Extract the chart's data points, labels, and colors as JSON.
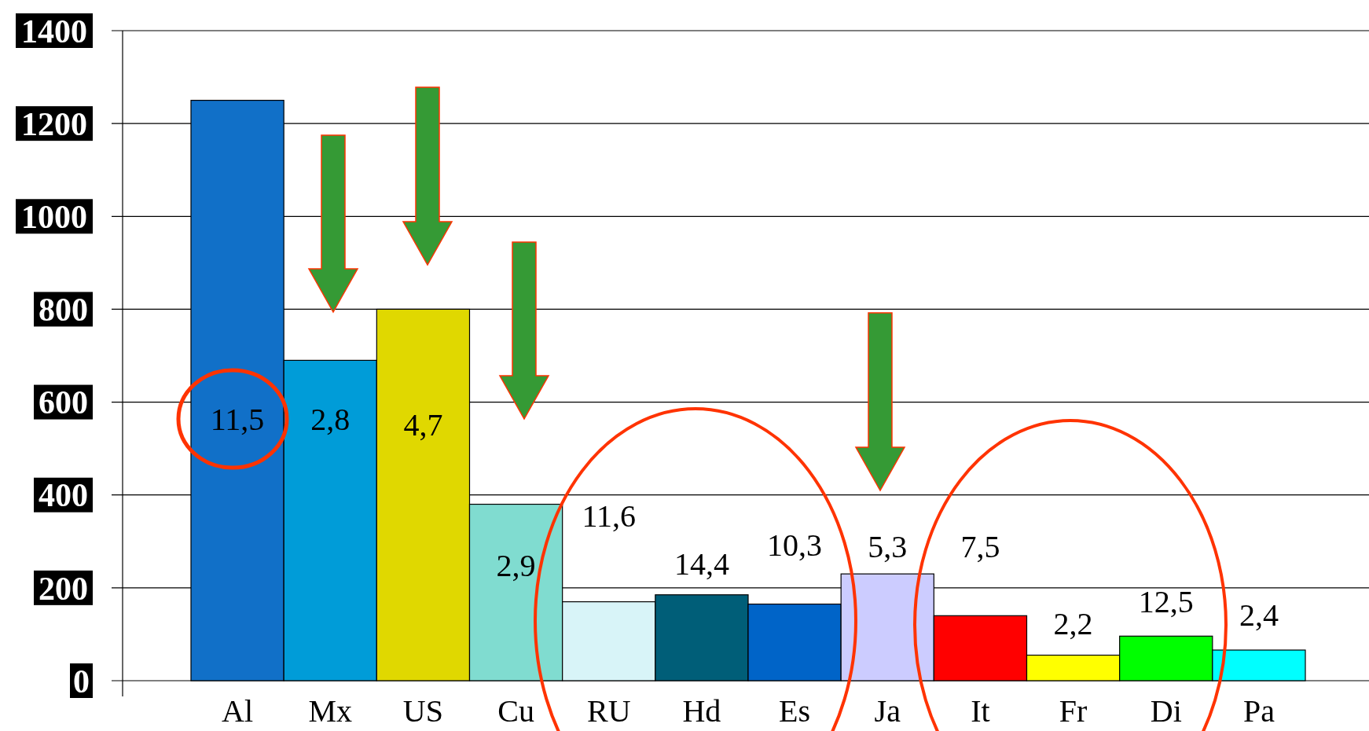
{
  "chart_data": {
    "type": "bar",
    "categories": [
      "Al",
      "Mx",
      "US",
      "Cu",
      "RU",
      "Hd",
      "Es",
      "Ja",
      "It",
      "Fr",
      "Di",
      "Pa"
    ],
    "values": [
      1250,
      690,
      800,
      380,
      170,
      185,
      165,
      230,
      140,
      55,
      96,
      66
    ],
    "colors": [
      "#1170c8",
      "#009cd8",
      "#e0d800",
      "#80dcd0",
      "#d8f4f8",
      "#005e78",
      "#0064c8",
      "#ccccff",
      "#ff0000",
      "#ffff00",
      "#00ff00",
      "#00ffff"
    ],
    "ylim": [
      0,
      1400
    ],
    "yticks": [
      0,
      200,
      400,
      600,
      800,
      1000,
      1200,
      1400
    ],
    "grid": "y",
    "annotations": [
      "11,5",
      "2,8",
      "4,7",
      "2,9",
      "11,6",
      "14,4",
      "10,3",
      "5,3",
      "7,5",
      "2,2",
      "12,5",
      "2,4"
    ]
  }
}
